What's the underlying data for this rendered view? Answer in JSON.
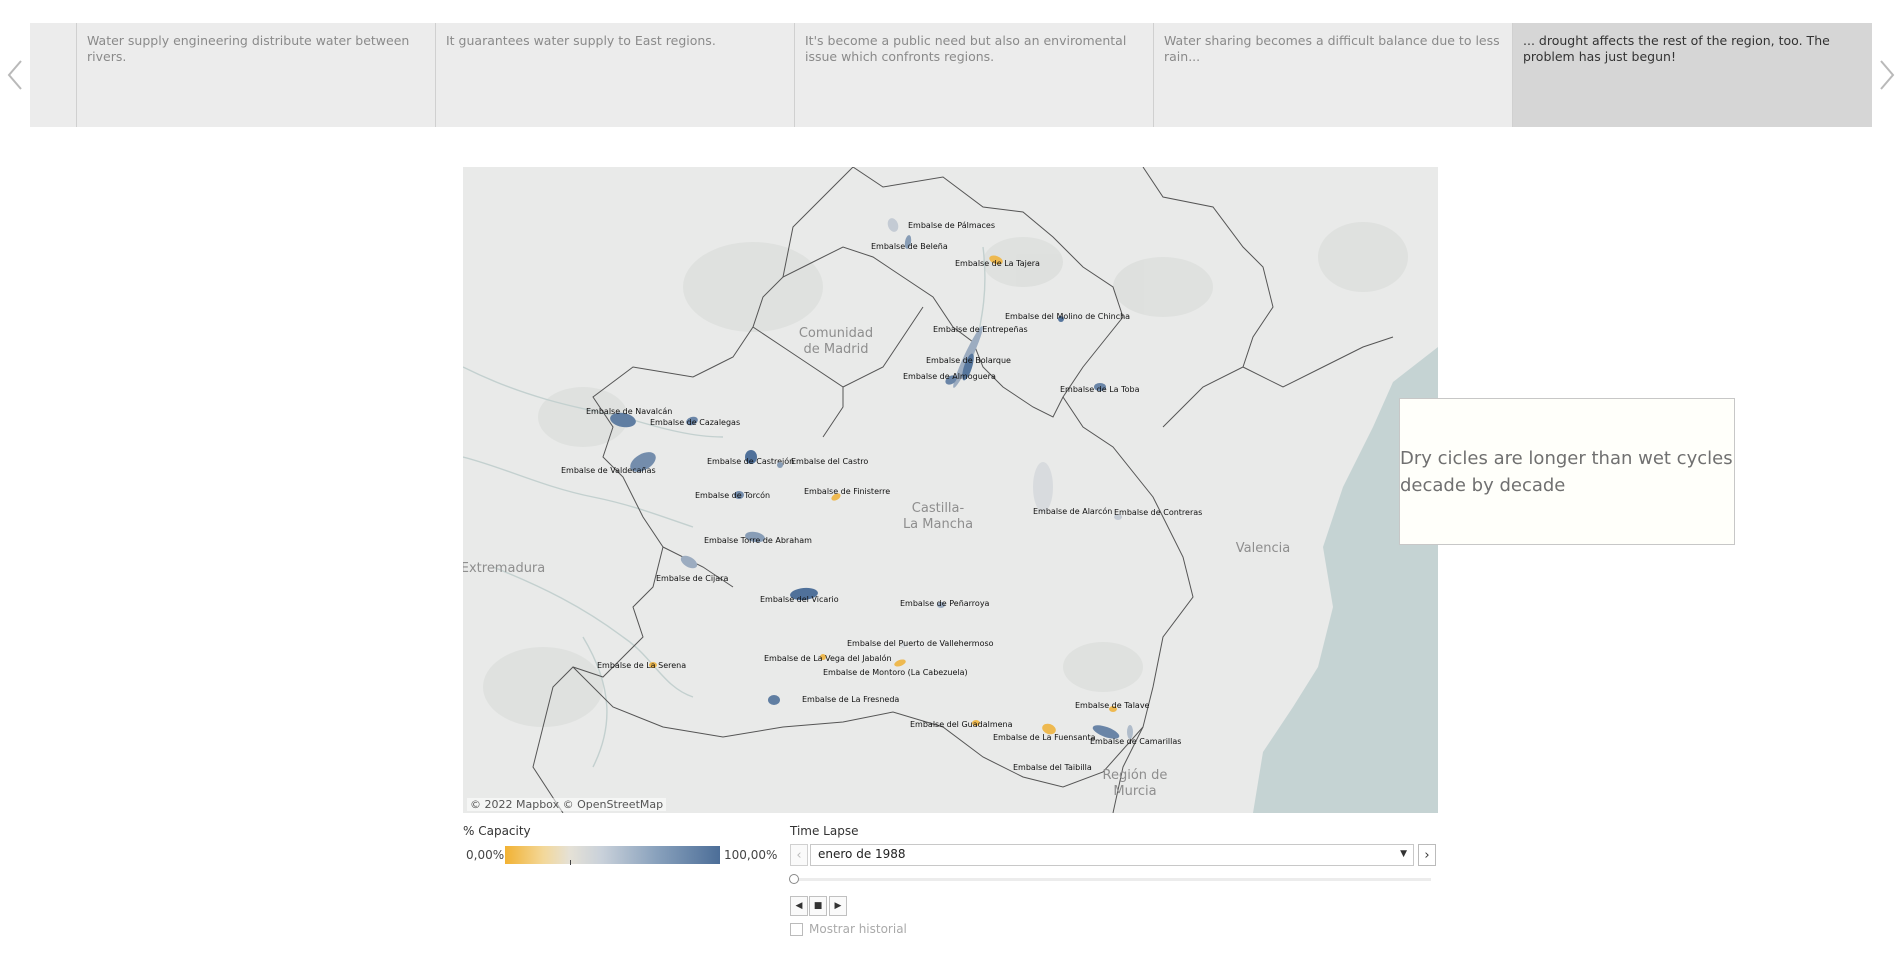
{
  "story": {
    "points": [
      {
        "text": "Water supply engineering distribute water between rivers.",
        "active": false
      },
      {
        "text": "It guarantees water supply to East regions.",
        "active": false
      },
      {
        "text": "It's become a public need but also an enviromental issue which confronts regions.",
        "active": false
      },
      {
        "text": "Water sharing becomes a difficult balance due to less rain...",
        "active": false
      },
      {
        "text": "... drought affects the rest of the region, too. The problem has just begun!",
        "active": true
      }
    ]
  },
  "map": {
    "attribution": "© 2022 Mapbox  © OpenStreetMap",
    "regions": [
      "Comunidad",
      "de Madrid",
      "Castilla-",
      "La Mancha",
      "Extremadura",
      "Valencia",
      "Región de",
      "Murcia"
    ],
    "reservoirs": [
      {
        "name": "Embalse de Pálmaces",
        "capacity_pct": 40
      },
      {
        "name": "Embalse de Beleña",
        "capacity_pct": 70
      },
      {
        "name": "Embalse de La Tajera",
        "capacity_pct": 5
      },
      {
        "name": "Embalse del Molino de Chincha",
        "capacity_pct": 95
      },
      {
        "name": "Embalse de Entrepeñas",
        "capacity_pct": 60
      },
      {
        "name": "Embalse de Bolarque",
        "capacity_pct": 95
      },
      {
        "name": "Embalse de Almoguera",
        "capacity_pct": 85
      },
      {
        "name": "Embalse de La Toba",
        "capacity_pct": 85
      },
      {
        "name": "Embalse de Navalcán",
        "capacity_pct": 90
      },
      {
        "name": "Embalse de Cazalegas",
        "capacity_pct": 85
      },
      {
        "name": "Embalse de Valdecañas",
        "capacity_pct": 80
      },
      {
        "name": "Embalse de Castrejón",
        "capacity_pct": 98
      },
      {
        "name": "Embalse del Castro",
        "capacity_pct": 70
      },
      {
        "name": "Embalse de Torcón",
        "capacity_pct": 80
      },
      {
        "name": "Embalse de Finisterre",
        "capacity_pct": 5
      },
      {
        "name": "Embalse de Alarcón",
        "capacity_pct": 30
      },
      {
        "name": "Embalse de Contreras",
        "capacity_pct": 40
      },
      {
        "name": "Embalse Torre de Abraham",
        "capacity_pct": 70
      },
      {
        "name": "Embalse de Cijara",
        "capacity_pct": 60
      },
      {
        "name": "Embalse del Vicario",
        "capacity_pct": 98
      },
      {
        "name": "Embalse de Peñarroya",
        "capacity_pct": 60
      },
      {
        "name": "Embalse del Puerto de Vallehermoso",
        "capacity_pct": 30
      },
      {
        "name": "Embalse de La Vega del Jabalón",
        "capacity_pct": 5
      },
      {
        "name": "Embalse de Montoro (La Cabezuela)",
        "capacity_pct": 5
      },
      {
        "name": "Embalse de La Serena",
        "capacity_pct": 5
      },
      {
        "name": "Embalse de La Fresneda",
        "capacity_pct": 90
      },
      {
        "name": "Embalse de Talave",
        "capacity_pct": 5
      },
      {
        "name": "Embalse del Guadalmena",
        "capacity_pct": 5
      },
      {
        "name": "Embalse de La Fuensanta",
        "capacity_pct": 5
      },
      {
        "name": "Embalse de Camarillas",
        "capacity_pct": 85
      },
      {
        "name": "Embalse del Taibilla",
        "capacity_pct": 50
      }
    ]
  },
  "annotation": {
    "text": "Dry cicles are longer than wet cycles decade by decade"
  },
  "legend": {
    "title": "% Capacity",
    "min": "0,00%",
    "max": "100,00%",
    "low_color": "#f2b233",
    "mid_color": "#d8dbde",
    "high_color": "#4c6e98"
  },
  "time_lapse": {
    "title": "Time Lapse",
    "value": "enero de 1988",
    "show_history_label": "Mostrar historial"
  }
}
